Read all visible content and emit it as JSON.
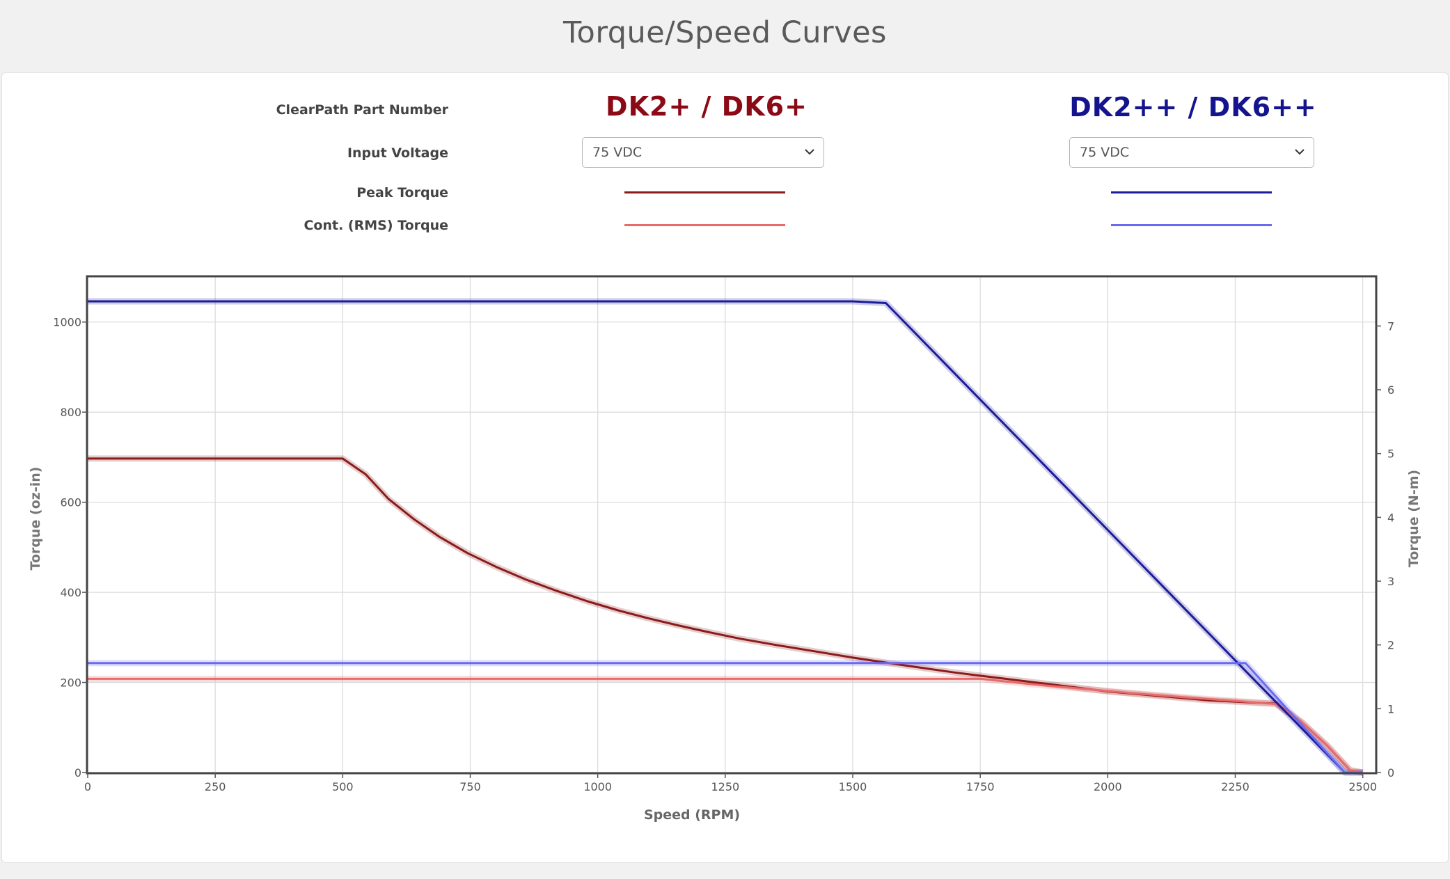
{
  "page": {
    "title": "Torque/Speed Curves"
  },
  "header": {
    "part_number_label": "ClearPath Part Number",
    "input_voltage_label": "Input Voltage",
    "peak_torque_label": "Peak Torque",
    "cont_torque_label": "Cont. (RMS) Torque"
  },
  "motors": [
    {
      "name": "DK2+ / DK6+",
      "voltage": "75 VDC",
      "color": "#8b0a16",
      "peak_color": "#8b1a1a",
      "cont_color": "#e86a6a"
    },
    {
      "name": "DK2++ / DK6++",
      "voltage": "75 VDC",
      "color": "#14148e",
      "peak_color": "#1c1c9a",
      "cont_color": "#6a6af0"
    }
  ],
  "chart_data": {
    "type": "line",
    "xlabel": "Speed (RPM)",
    "ylabel": "Torque (oz-in)",
    "y2label": "Torque (N-m)",
    "xlim": [
      0,
      2525
    ],
    "ylim": [
      0,
      1100
    ],
    "y2lim": [
      0,
      7.768
    ],
    "xticks": [
      0,
      250,
      500,
      750,
      1000,
      1250,
      1500,
      1750,
      2000,
      2250,
      2500
    ],
    "yticks": [
      0,
      200,
      400,
      600,
      800,
      1000
    ],
    "y2ticks": [
      0,
      1,
      2,
      3,
      4,
      5,
      6,
      7
    ],
    "grid": true,
    "series": [
      {
        "name": "DK2+ / DK6+ Peak Torque",
        "color": "#8b1a1a",
        "x": [
          0,
          500,
          545,
          590,
          640,
          690,
          745,
          800,
          860,
          920,
          980,
          1040,
          1100,
          1160,
          1220,
          1280,
          1350,
          1420,
          1500,
          1600,
          1700,
          1800,
          1900,
          2000,
          2100,
          2200,
          2330,
          2380,
          2430,
          2475,
          2500
        ],
        "y": [
          697,
          697,
          662,
          607,
          562,
          523,
          487,
          457,
          428,
          403,
          380,
          360,
          342,
          326,
          311,
          297,
          283,
          270,
          255,
          238,
          222,
          208,
          194,
          180,
          170,
          160,
          153,
          112,
          60,
          5,
          0
        ]
      },
      {
        "name": "DK2+ / DK6+ Cont. (RMS) Torque",
        "color": "#e86a6a",
        "x": [
          0,
          1750,
          1850,
          1950,
          2050,
          2150,
          2250,
          2330,
          2380,
          2430,
          2475,
          2500
        ],
        "y": [
          208,
          208,
          196,
          186,
          176,
          167,
          159,
          152,
          112,
          60,
          5,
          0
        ]
      },
      {
        "name": "DK2++ / DK6++ Peak Torque",
        "color": "#1c1c9a",
        "x": [
          0,
          1500,
          1565,
          2465,
          2500
        ],
        "y": [
          1046,
          1046,
          1042,
          0,
          0
        ]
      },
      {
        "name": "DK2++ / DK6++ Cont. (RMS) Torque",
        "color": "#6a6af0",
        "x": [
          0,
          2270,
          2465,
          2500
        ],
        "y": [
          243,
          243,
          0,
          0
        ]
      }
    ]
  }
}
